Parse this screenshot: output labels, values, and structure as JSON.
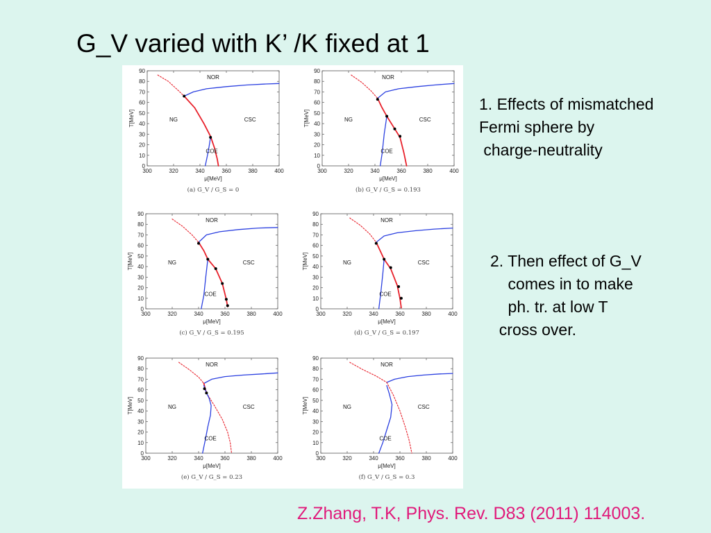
{
  "slide": {
    "title": "G_V varied with K’ /K fixed at 1",
    "note1": "1. Effects of mismatched\nFermi sphere by\n charge-neutrality",
    "note2": "2. Then effect of G_V\n    comes in to make\n    ph. tr. at low T\n  cross over.",
    "citation": "Z.Zhang, T.K, Phys. Rev. D83 (2011) 114003."
  },
  "colors": {
    "background": "#dcf5ee",
    "citation": "#e0197a",
    "first_order_line": "#e8202a",
    "crossover_line": "#e8202a",
    "phase_boundary": "#2a3fe0",
    "critical_points": "#000000"
  },
  "chart_data": [
    {
      "type": "line",
      "caption": "(a) G_V / G_S = 0",
      "xlabel": "μ[MeV]",
      "ylabel": "T[MeV]",
      "xlim": [
        300,
        400
      ],
      "ylim": [
        0,
        90
      ],
      "xticks": [
        "300",
        "320",
        "340",
        "360",
        "380",
        "400"
      ],
      "yticks": [
        "0",
        "10",
        "20",
        "30",
        "40",
        "50",
        "60",
        "70",
        "80",
        "90"
      ],
      "regions": [
        "NOR",
        "NG",
        "CSC",
        "COE"
      ],
      "series": [
        {
          "style": "dotted-red",
          "x": [
            308,
            316,
            323,
            328
          ],
          "y": [
            86,
            80,
            72,
            66
          ]
        },
        {
          "style": "blue",
          "x": [
            328,
            335,
            345,
            360,
            375,
            390,
            400
          ],
          "y": [
            66,
            70,
            73,
            75,
            76.5,
            77.5,
            78
          ]
        },
        {
          "style": "red",
          "x": [
            328,
            336,
            343,
            348,
            351,
            353,
            354
          ],
          "y": [
            66,
            55,
            40,
            28,
            17,
            7,
            0
          ]
        },
        {
          "style": "blue",
          "x": [
            344,
            345.5,
            347,
            348
          ],
          "y": [
            0,
            9,
            19,
            27
          ]
        }
      ],
      "points": [
        {
          "x": 328,
          "y": 66
        },
        {
          "x": 348,
          "y": 27
        }
      ]
    },
    {
      "type": "line",
      "caption": "(b) G_V / G_S = 0.193",
      "xlabel": "μ[MeV]",
      "ylabel": "T[MeV]",
      "xlim": [
        300,
        400
      ],
      "ylim": [
        0,
        90
      ],
      "xticks": [
        "300",
        "320",
        "340",
        "360",
        "380",
        "400"
      ],
      "yticks": [
        "0",
        "10",
        "20",
        "30",
        "40",
        "50",
        "60",
        "70",
        "80",
        "90"
      ],
      "regions": [
        "NOR",
        "NG",
        "CSC",
        "COE"
      ],
      "series": [
        {
          "style": "dotted-red",
          "x": [
            322,
            330,
            337,
            342
          ],
          "y": [
            86,
            79,
            71,
            64
          ]
        },
        {
          "style": "blue",
          "x": [
            342,
            348,
            358,
            372,
            385,
            400
          ],
          "y": [
            64,
            70,
            73,
            75,
            76.5,
            78
          ]
        },
        {
          "style": "red",
          "x": [
            342,
            345,
            349,
            355,
            359,
            362,
            364
          ],
          "y": [
            64,
            56,
            47,
            35,
            27,
            12,
            0
          ]
        },
        {
          "style": "blue",
          "x": [
            344,
            345.5,
            347,
            349
          ],
          "y": [
            0,
            12,
            30,
            47
          ]
        }
      ],
      "points": [
        {
          "x": 342,
          "y": 63
        },
        {
          "x": 349,
          "y": 47
        },
        {
          "x": 355,
          "y": 35
        },
        {
          "x": 359,
          "y": 28
        }
      ]
    },
    {
      "type": "line",
      "caption": "(c) G_V / G_S = 0.195",
      "xlabel": "μ[MeV]",
      "ylabel": "T[MeV]",
      "xlim": [
        300,
        400
      ],
      "ylim": [
        0,
        90
      ],
      "xticks": [
        "300",
        "320",
        "340",
        "360",
        "380",
        "400"
      ],
      "yticks": [
        "0",
        "10",
        "20",
        "30",
        "40",
        "50",
        "60",
        "70",
        "80",
        "90"
      ],
      "regions": [
        "NOR",
        "NG",
        "CSC",
        "COE"
      ],
      "series": [
        {
          "style": "dotted-red",
          "x": [
            320,
            328,
            335,
            340
          ],
          "y": [
            85,
            78,
            70,
            63
          ]
        },
        {
          "style": "blue",
          "x": [
            340,
            346,
            356,
            370,
            385,
            400
          ],
          "y": [
            63,
            70,
            73,
            75,
            76.5,
            77
          ]
        },
        {
          "style": "red",
          "x": [
            340,
            344,
            347,
            353,
            358,
            361,
            362
          ],
          "y": [
            63,
            55,
            47,
            38,
            24,
            9,
            2
          ]
        },
        {
          "style": "blue",
          "x": [
            342,
            344,
            345.5,
            347
          ],
          "y": [
            0,
            13,
            31,
            47
          ]
        }
      ],
      "points": [
        {
          "x": 340,
          "y": 62
        },
        {
          "x": 347,
          "y": 47
        },
        {
          "x": 353,
          "y": 38
        },
        {
          "x": 358,
          "y": 24
        },
        {
          "x": 361,
          "y": 9
        },
        {
          "x": 362,
          "y": 3
        }
      ]
    },
    {
      "type": "line",
      "caption": "(d) G_V / G_S = 0.197",
      "xlabel": "μ[MeV]",
      "ylabel": "T[MeV]",
      "xlim": [
        300,
        400
      ],
      "ylim": [
        0,
        90
      ],
      "xticks": [
        "300",
        "320",
        "340",
        "360",
        "380",
        "400"
      ],
      "yticks": [
        "0",
        "10",
        "20",
        "30",
        "40",
        "50",
        "60",
        "70",
        "80",
        "90"
      ],
      "regions": [
        "NOR",
        "NG",
        "CSC",
        "COE"
      ],
      "series": [
        {
          "style": "dotted-red",
          "x": [
            322,
            330,
            337,
            342
          ],
          "y": [
            86,
            79,
            71,
            63
          ]
        },
        {
          "style": "blue",
          "x": [
            342,
            348,
            358,
            372,
            386,
            400
          ],
          "y": [
            63,
            69,
            72,
            74,
            75.5,
            76.5
          ]
        },
        {
          "style": "red",
          "x": [
            342,
            345,
            348,
            353,
            358,
            360,
            361
          ],
          "y": [
            63,
            55,
            47,
            38,
            22,
            10,
            1
          ]
        },
        {
          "style": "blue",
          "x": [
            344,
            345.5,
            347,
            348
          ],
          "y": [
            0,
            15,
            33,
            47
          ]
        }
      ],
      "points": [
        {
          "x": 342,
          "y": 62
        },
        {
          "x": 348,
          "y": 47
        },
        {
          "x": 353,
          "y": 39
        },
        {
          "x": 359,
          "y": 21
        },
        {
          "x": 361,
          "y": 10
        }
      ]
    },
    {
      "type": "line",
      "caption": "(e) G_V / G_S = 0.23",
      "xlabel": "μ[MeV]",
      "ylabel": "T[MeV]",
      "xlim": [
        300,
        400
      ],
      "ylim": [
        0,
        90
      ],
      "xticks": [
        "300",
        "320",
        "340",
        "360",
        "380",
        "400"
      ],
      "yticks": [
        "0",
        "10",
        "20",
        "30",
        "40",
        "50",
        "60",
        "70",
        "80",
        "90"
      ],
      "regions": [
        "NOR",
        "NG",
        "CSC",
        "COE"
      ],
      "series": [
        {
          "style": "dotted-red",
          "x": [
            325,
            333,
            340,
            344
          ],
          "y": [
            86,
            79,
            72,
            66
          ]
        },
        {
          "style": "blue",
          "x": [
            344,
            350,
            360,
            374,
            388,
            400
          ],
          "y": [
            66,
            70,
            72.5,
            74,
            75,
            76
          ]
        },
        {
          "style": "red",
          "x": [
            344,
            345,
            346
          ],
          "y": [
            66,
            61,
            57
          ]
        },
        {
          "style": "dotted-red",
          "x": [
            346,
            352,
            358,
            362,
            364,
            365
          ],
          "y": [
            57,
            45,
            32,
            20,
            10,
            0
          ]
        },
        {
          "style": "blue",
          "x": [
            343,
            345,
            347,
            349,
            349.5,
            348,
            346,
            344
          ],
          "y": [
            0,
            12,
            25,
            36,
            45,
            52,
            57,
            64
          ]
        }
      ],
      "points": [
        {
          "x": 344.5,
          "y": 61
        },
        {
          "x": 346,
          "y": 57
        }
      ]
    },
    {
      "type": "line",
      "caption": "(f) G_V / G_S = 0.3",
      "xlabel": "μ[MeV]",
      "ylabel": "T[MeV]",
      "xlim": [
        300,
        400
      ],
      "ylim": [
        0,
        90
      ],
      "xticks": [
        "300",
        "320",
        "340",
        "360",
        "380",
        "400"
      ],
      "yticks": [
        "0",
        "10",
        "20",
        "30",
        "40",
        "50",
        "60",
        "70",
        "80",
        "90"
      ],
      "regions": [
        "NOR",
        "NG",
        "CSC",
        "COE"
      ],
      "series": [
        {
          "style": "dotted-red",
          "x": [
            322,
            332,
            342,
            350
          ],
          "y": [
            86,
            79,
            73,
            67
          ]
        },
        {
          "style": "blue",
          "x": [
            350,
            356,
            366,
            378,
            390,
            400
          ],
          "y": [
            67,
            70,
            72.5,
            74,
            75,
            75.5
          ]
        },
        {
          "style": "dotted-red",
          "x": [
            350,
            355,
            360,
            364,
            367,
            369
          ],
          "y": [
            67,
            55,
            40,
            25,
            12,
            0
          ]
        },
        {
          "style": "blue",
          "x": [
            344,
            347,
            350,
            353,
            354,
            352,
            350
          ],
          "y": [
            0,
            10,
            22,
            34,
            46,
            56,
            64
          ]
        }
      ],
      "points": []
    }
  ]
}
